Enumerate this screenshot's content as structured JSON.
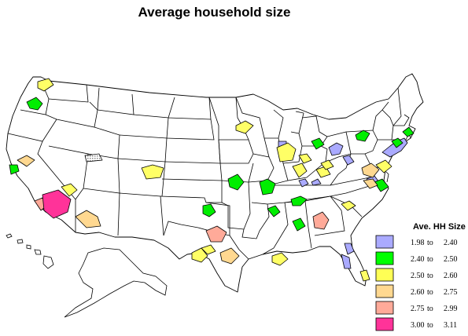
{
  "title": "Average household size",
  "legend": {
    "title": "Ave. HH Size",
    "items": [
      {
        "from": "1.98",
        "to_word": "to",
        "upper": "2.40",
        "color": "#aaaaff"
      },
      {
        "from": "2.40",
        "to_word": "to",
        "upper": "2.50",
        "color": "#00ff00"
      },
      {
        "from": "2.50",
        "to_word": "to",
        "upper": "2.60",
        "color": "#ffff55"
      },
      {
        "from": "2.60",
        "to_word": "to",
        "upper": "2.75",
        "color": "#ffd890"
      },
      {
        "from": "2.75",
        "to_word": "to",
        "upper": "2.99",
        "color": "#ffaa99"
      },
      {
        "from": "3.00",
        "to_word": "to",
        "upper": "3.11",
        "color": "#ff3399"
      }
    ]
  },
  "colors": {
    "state_fill": "#ffffff",
    "state_border": "#000000",
    "no_data_pattern": "#999999"
  }
}
